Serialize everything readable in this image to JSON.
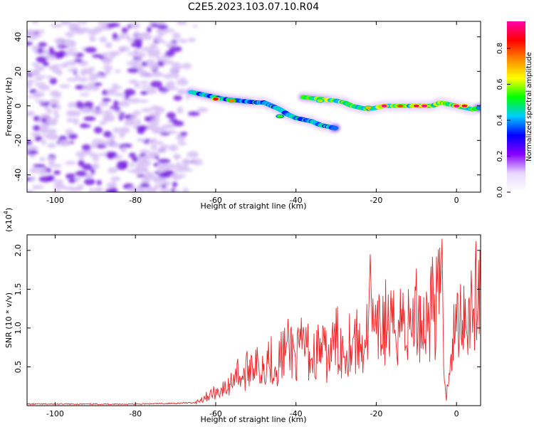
{
  "title": "C2E5.2023.103.07.10.R04",
  "colors": {
    "axis": "#000000",
    "snr_line": "#ee2222",
    "blob_purple": "#7a1fe0",
    "blob_light": "#d8c2f5"
  },
  "chart_data": [
    {
      "type": "heatmap",
      "xlabel": "Height of straight line (km)",
      "ylabel": "Frequency (Hz)",
      "xlim": [
        -107,
        6
      ],
      "ylim": [
        -50,
        49
      ],
      "xticks": [
        -100,
        -80,
        -60,
        -40,
        -20,
        0
      ],
      "yticks": [
        -40,
        -20,
        0,
        20,
        40
      ],
      "colorbar": {
        "label": "Normalized spectral amplitude",
        "range": [
          0,
          0.95
        ],
        "ticks": [
          0.0,
          0.2,
          0.4,
          0.6,
          0.8
        ],
        "colormap": [
          "#ffffff",
          "#e8d8ff",
          "#8800ff",
          "#0000ff",
          "#00ccff",
          "#00ff00",
          "#ffff00",
          "#ff8800",
          "#ff0000",
          "#ff00aa"
        ]
      },
      "noise_region": {
        "x_range": [
          -107,
          -62
        ],
        "amplitude": 0.1
      },
      "tracks": [
        {
          "points": [
            [
              -66,
              8
            ],
            [
              -62,
              6
            ],
            [
              -58,
              4
            ],
            [
              -54,
              3
            ],
            [
              -50,
              2
            ],
            [
              -48,
              2
            ],
            [
              -46,
              0
            ],
            [
              -44,
              -2
            ],
            [
              -42,
              -5
            ],
            [
              -40,
              -7
            ],
            [
              -38,
              -8
            ],
            [
              -36,
              -9
            ],
            [
              -34,
              -11
            ],
            [
              -32,
              -12
            ],
            [
              -30,
              -13
            ]
          ],
          "amplitude": 0.5
        },
        {
          "points": [
            [
              -38,
              5
            ],
            [
              -34,
              4
            ],
            [
              -30,
              3
            ],
            [
              -28,
              2
            ],
            [
              -26,
              0
            ],
            [
              -24,
              -1
            ],
            [
              -22,
              -2
            ],
            [
              -20,
              -1
            ],
            [
              -18,
              0
            ],
            [
              -16,
              0
            ],
            [
              -14,
              0
            ],
            [
              -12,
              0
            ],
            [
              -10,
              0
            ],
            [
              -8,
              0
            ],
            [
              -6,
              0
            ],
            [
              -4,
              2
            ],
            [
              -2,
              1
            ],
            [
              0,
              0
            ],
            [
              2,
              -1
            ],
            [
              4,
              -2
            ],
            [
              6,
              -1
            ]
          ],
          "amplitude": 0.65
        }
      ],
      "peaks": [
        [
          -60,
          4,
          0.85
        ],
        [
          -56,
          3,
          0.75
        ],
        [
          -44,
          -6,
          0.55
        ],
        [
          -34,
          3,
          0.6
        ],
        [
          -22,
          -1,
          0.7
        ],
        [
          -18,
          0,
          0.95
        ],
        [
          -14,
          0,
          0.8
        ],
        [
          -10,
          0,
          0.9
        ],
        [
          -8,
          0,
          0.95
        ],
        [
          0,
          0,
          0.95
        ],
        [
          2,
          0,
          0.9
        ]
      ]
    },
    {
      "type": "line",
      "xlabel": "Height of straight line (km)",
      "ylabel": "SNR (10 * v/v)",
      "yscale_label": "(x10",
      "yscale_exp": "4",
      "yscale_close": ")",
      "xlim": [
        -107,
        6
      ],
      "ylim": [
        0,
        2.2
      ],
      "xticks": [
        -100,
        -80,
        -60,
        -40,
        -20,
        0
      ],
      "yticks": [
        0.5,
        1.0,
        1.5,
        2.0
      ],
      "series": [
        {
          "x": [
            -107,
            -100,
            -90,
            -80,
            -70,
            -65,
            -63,
            -61,
            -59,
            -57,
            -55,
            -53,
            -51,
            -49,
            -47,
            -45,
            -43,
            -41,
            -40,
            -38,
            -36,
            -34,
            -32,
            -30,
            -28,
            -26,
            -24,
            -22,
            -21.5,
            -21,
            -20,
            -18,
            -16,
            -14,
            -12,
            -10,
            -8,
            -6,
            -5,
            -4,
            -3.6,
            -3.2,
            -2.5,
            -2,
            -1,
            0,
            1,
            2,
            3,
            4,
            5,
            6
          ],
          "y": [
            0.02,
            0.02,
            0.02,
            0.02,
            0.03,
            0.04,
            0.1,
            0.15,
            0.2,
            0.22,
            0.45,
            0.35,
            0.6,
            0.45,
            0.65,
            0.5,
            0.7,
            0.75,
            0.6,
            0.8,
            0.6,
            0.75,
            0.6,
            0.85,
            0.7,
            0.9,
            0.75,
            0.95,
            1.95,
            1.0,
            0.85,
            1.1,
            0.95,
            1.15,
            1.0,
            1.2,
            1.05,
            1.35,
            1.25,
            1.45,
            2.15,
            0.6,
            0.05,
            0.5,
            0.85,
            1.05,
            1.2,
            1.25,
            1.2,
            1.35,
            1.4,
            1.45
          ]
        }
      ]
    }
  ]
}
